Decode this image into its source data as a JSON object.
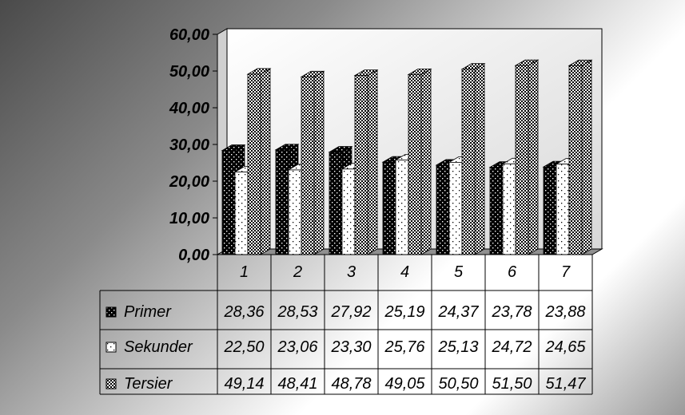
{
  "chart_data": {
    "type": "bar",
    "categories": [
      "1",
      "2",
      "3",
      "4",
      "5",
      "6",
      "7"
    ],
    "series": [
      {
        "name": "Primer",
        "values": [
          28.36,
          28.53,
          27.92,
          25.19,
          24.37,
          23.78,
          23.88
        ],
        "labels": [
          "28,36",
          "28,53",
          "27,92",
          "25,19",
          "24,37",
          "23,78",
          "23,88"
        ],
        "pattern": "black-dots"
      },
      {
        "name": "Sekunder",
        "values": [
          22.5,
          23.06,
          23.3,
          25.76,
          25.13,
          24.72,
          24.65
        ],
        "labels": [
          "22,50",
          "23,06",
          "23,30",
          "25,76",
          "25,13",
          "24,72",
          "24,65"
        ],
        "pattern": "white-dots"
      },
      {
        "name": "Tersier",
        "values": [
          49.14,
          48.41,
          48.78,
          49.05,
          50.5,
          51.5,
          51.47
        ],
        "labels": [
          "49,14",
          "48,41",
          "48,78",
          "49,05",
          "50,50",
          "51,50",
          "51,47"
        ],
        "pattern": "checker"
      }
    ],
    "ylim": [
      0,
      60
    ],
    "yticks": [
      "0,00",
      "10,00",
      "20,00",
      "30,00",
      "40,00",
      "50,00",
      "60,00"
    ],
    "title": "",
    "xlabel": "",
    "ylabel": "",
    "grid": false,
    "legend": "data-table",
    "style": "3d-clustered-column"
  }
}
